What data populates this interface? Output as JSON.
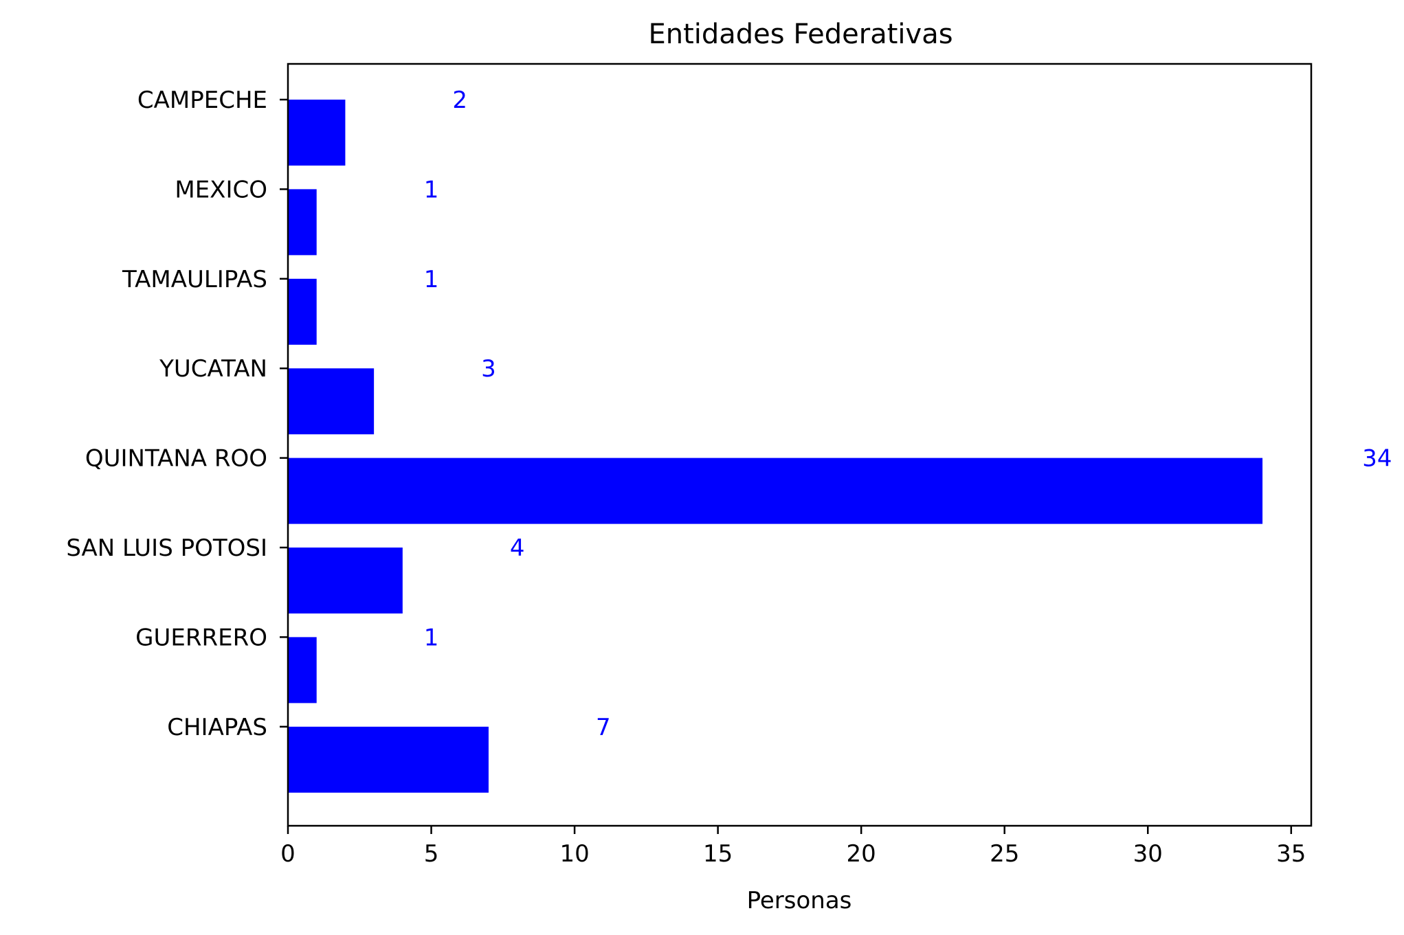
{
  "chart_data": {
    "type": "bar",
    "orientation": "horizontal",
    "title": "Entidades Federativas",
    "xlabel": "Personas",
    "ylabel": "",
    "categories": [
      "CAMPECHE",
      "MEXICO",
      "TAMAULIPAS",
      "YUCATAN",
      "QUINTANA ROO",
      "SAN LUIS POTOSI",
      "GUERRERO",
      "CHIAPAS"
    ],
    "values": [
      2,
      1,
      1,
      3,
      34,
      4,
      1,
      7
    ],
    "value_labels": [
      "2",
      "1",
      "1",
      "3",
      "34",
      "4",
      "1",
      "7"
    ],
    "xlim": [
      0,
      35.7
    ],
    "xticks": [
      0,
      5,
      10,
      15,
      20,
      25,
      30,
      35
    ],
    "xtick_labels": [
      "0",
      "5",
      "10",
      "15",
      "20",
      "25",
      "30",
      "35"
    ],
    "grid": false,
    "legend": "none",
    "bar_color": "#0000ff",
    "value_label_color": "#0000ff"
  }
}
